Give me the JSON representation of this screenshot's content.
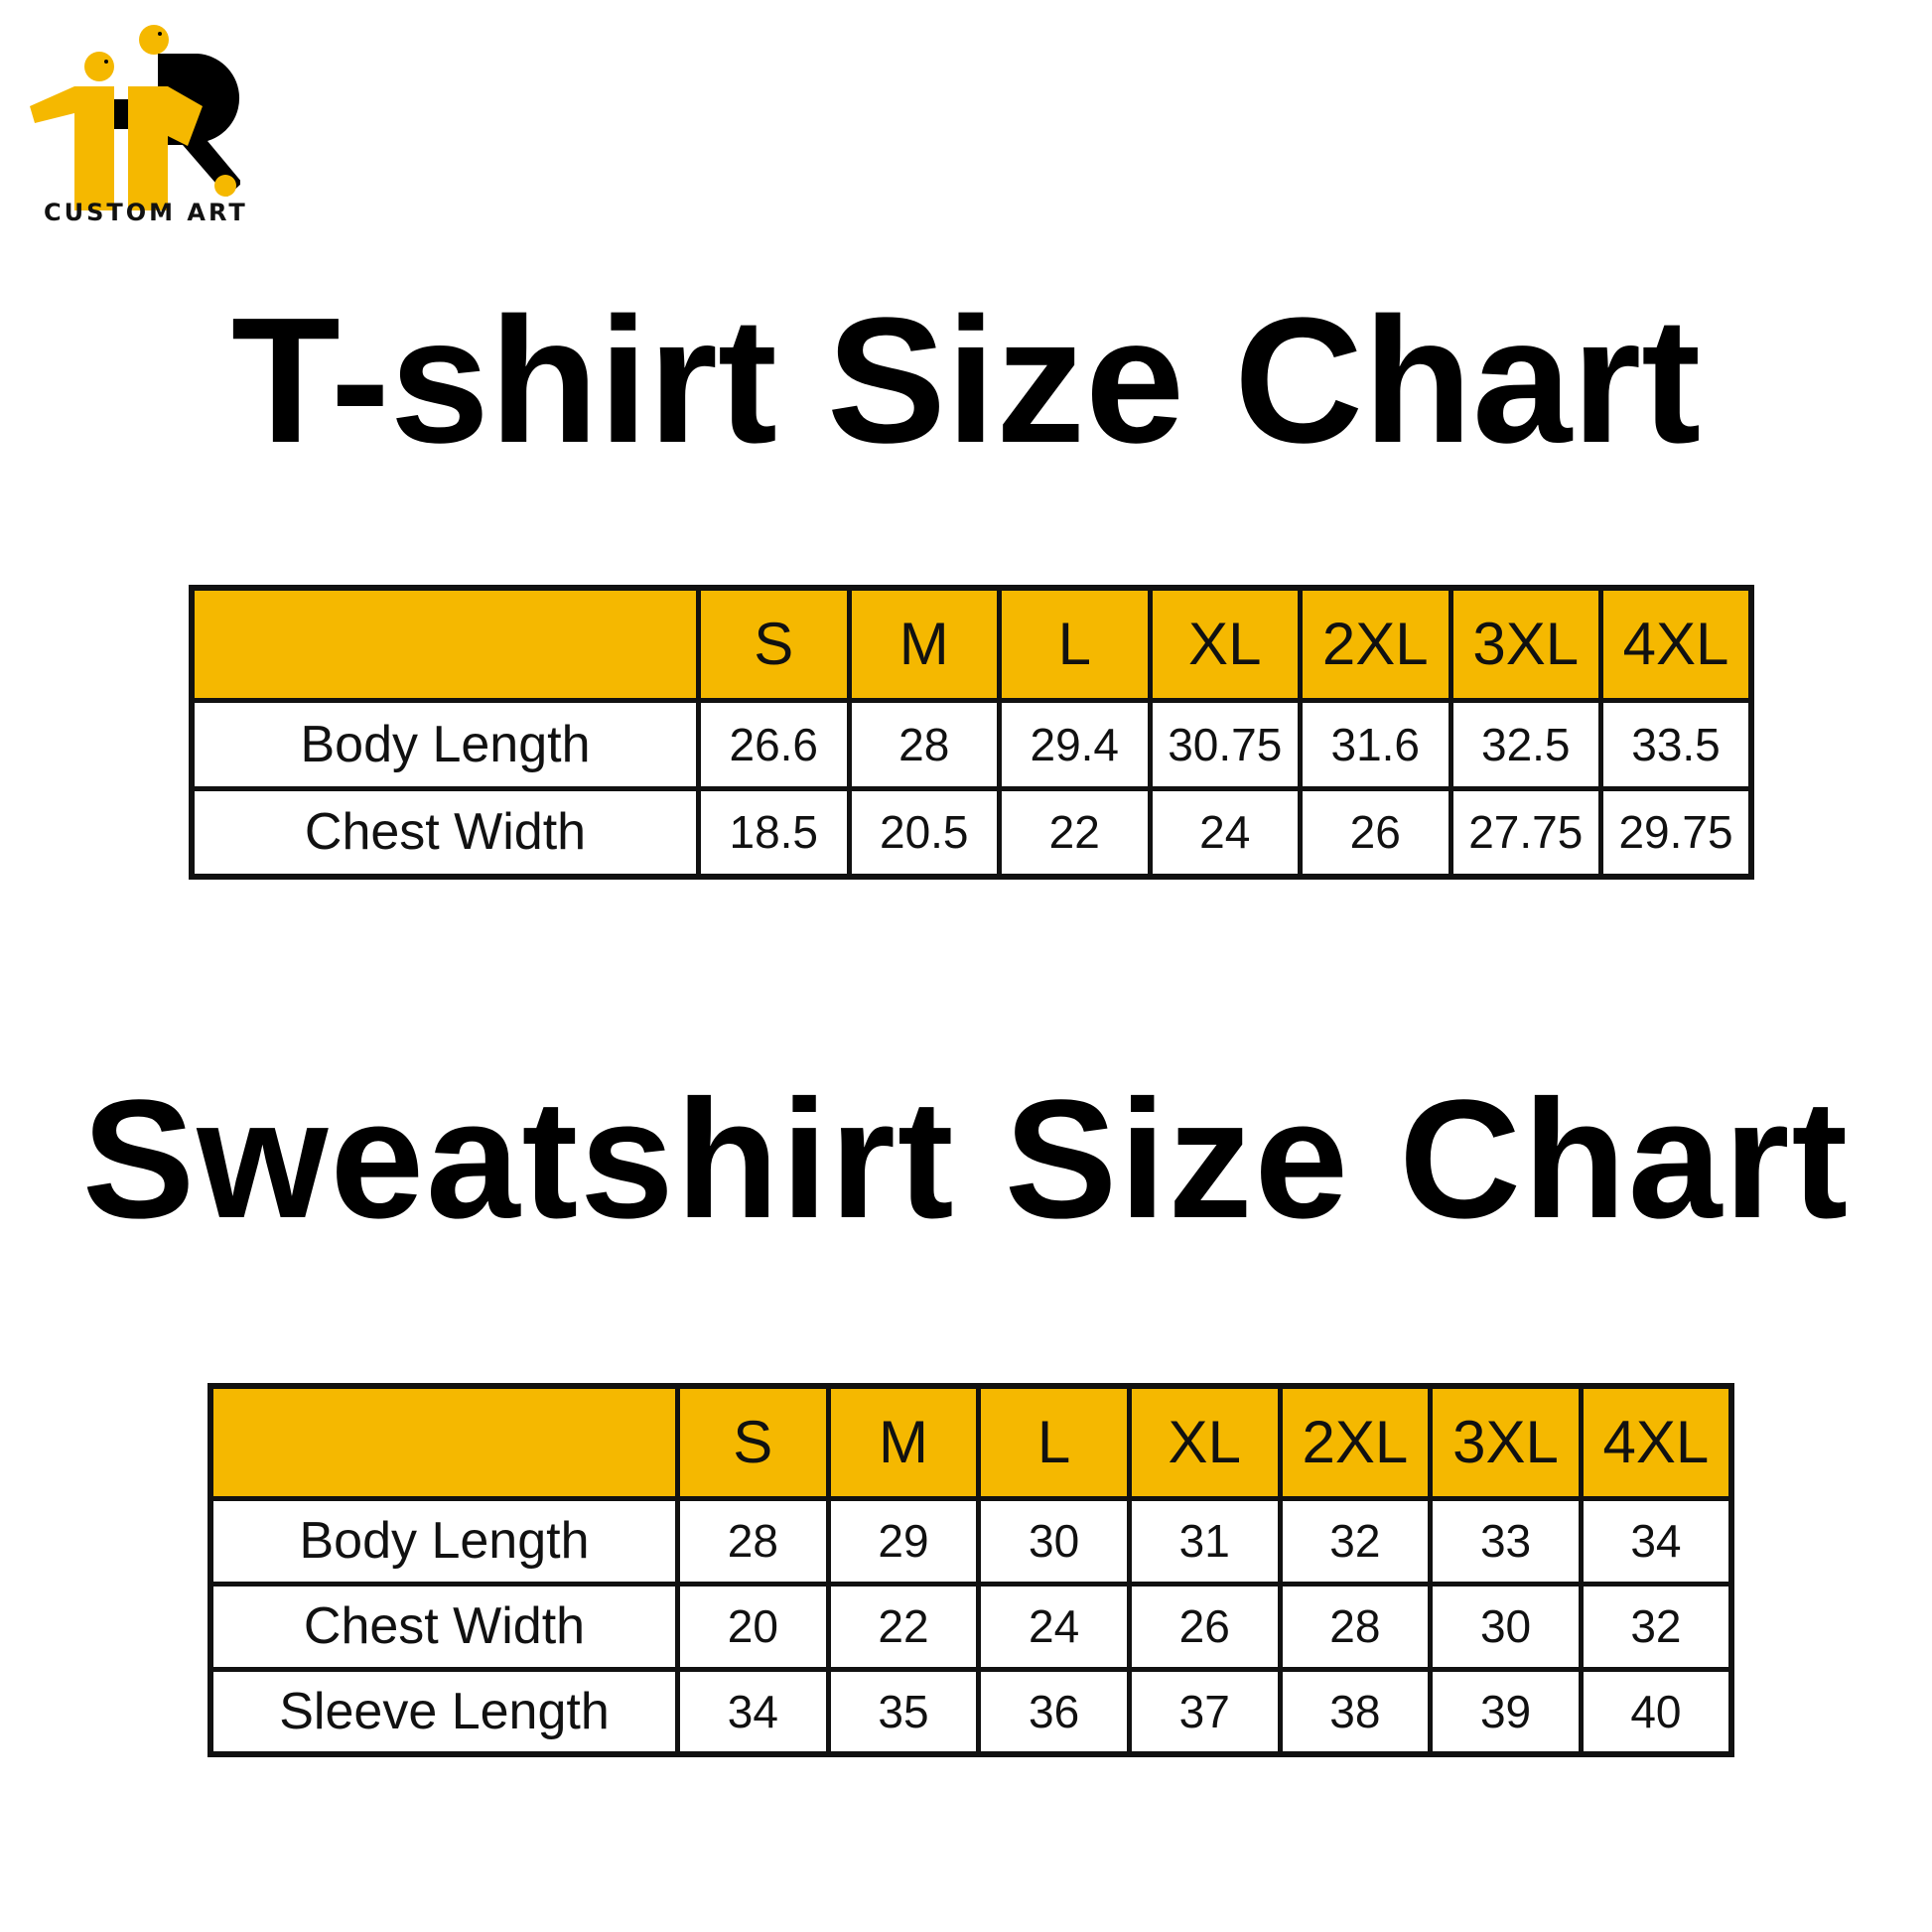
{
  "brand": {
    "logo_text": "CUSTOM ART",
    "colors": {
      "accent": "#F5B800",
      "ink": "#111111"
    }
  },
  "tshirt": {
    "title": "T-shirt Size Chart",
    "sizes": [
      "S",
      "M",
      "L",
      "XL",
      "2XL",
      "3XL",
      "4XL"
    ],
    "rows": [
      {
        "label": "Body Length",
        "values": [
          "26.6",
          "28",
          "29.4",
          "30.75",
          "31.6",
          "32.5",
          "33.5"
        ]
      },
      {
        "label": "Chest Width",
        "values": [
          "18.5",
          "20.5",
          "22",
          "24",
          "26",
          "27.75",
          "29.75"
        ]
      }
    ]
  },
  "sweatshirt": {
    "title": "Sweatshirt Size Chart",
    "sizes": [
      "S",
      "M",
      "L",
      "XL",
      "2XL",
      "3XL",
      "4XL"
    ],
    "rows": [
      {
        "label": "Body Length",
        "values": [
          "28",
          "29",
          "30",
          "31",
          "32",
          "33",
          "34"
        ]
      },
      {
        "label": "Chest Width",
        "values": [
          "20",
          "22",
          "24",
          "26",
          "28",
          "30",
          "32"
        ]
      },
      {
        "label": "Sleeve Length",
        "values": [
          "34",
          "35",
          "36",
          "37",
          "38",
          "39",
          "40"
        ]
      }
    ]
  }
}
